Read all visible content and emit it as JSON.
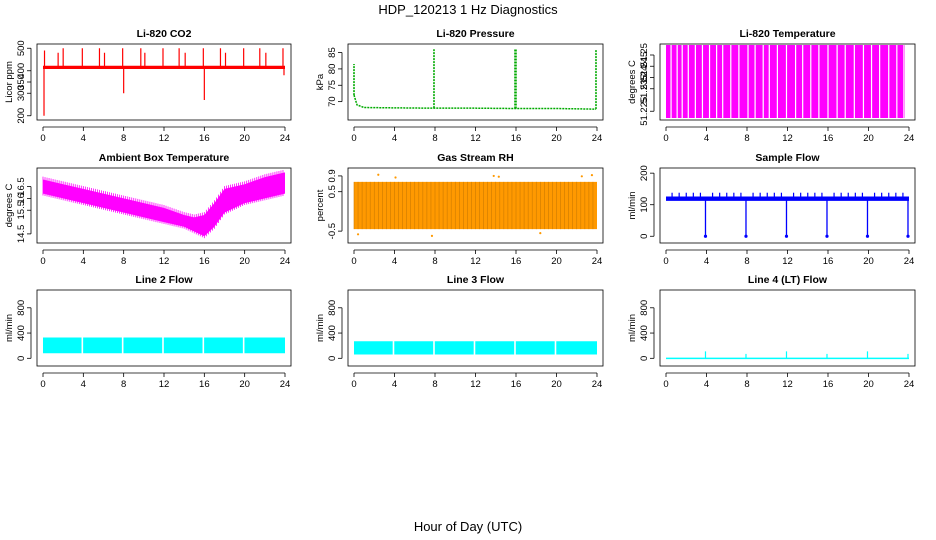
{
  "figure": {
    "title": "HDP_120213  1 Hz Diagnostics",
    "xlabel": "Hour of Day (UTC)"
  },
  "chart_data": [
    {
      "type": "line",
      "title": "Li-820 CO2",
      "ylabel": "Licor ppm",
      "color": "#ff0000",
      "xlim": [
        0,
        24
      ],
      "ylim": [
        190,
        510
      ],
      "xticks": [
        0,
        4,
        8,
        12,
        16,
        20,
        24
      ],
      "yticks": [
        200,
        300,
        350,
        400,
        500
      ],
      "baseline": {
        "x": [
          0,
          24
        ],
        "y": [
          415,
          415
        ]
      },
      "band": {
        "x": [
          0,
          24
        ],
        "low": [
          408,
          408
        ],
        "high": [
          422,
          422
        ]
      },
      "spikes": [
        {
          "x": 0.1,
          "y": 200
        },
        {
          "x": 0.15,
          "y": 490
        },
        {
          "x": 1.5,
          "y": 480
        },
        {
          "x": 2.0,
          "y": 500
        },
        {
          "x": 3.9,
          "y": 500
        },
        {
          "x": 5.6,
          "y": 500
        },
        {
          "x": 6.1,
          "y": 480
        },
        {
          "x": 7.9,
          "y": 500
        },
        {
          "x": 8.0,
          "y": 300
        },
        {
          "x": 9.7,
          "y": 500
        },
        {
          "x": 10.1,
          "y": 480
        },
        {
          "x": 11.9,
          "y": 500
        },
        {
          "x": 13.5,
          "y": 500
        },
        {
          "x": 14.1,
          "y": 480
        },
        {
          "x": 15.9,
          "y": 500
        },
        {
          "x": 16.0,
          "y": 270
        },
        {
          "x": 17.6,
          "y": 500
        },
        {
          "x": 18.1,
          "y": 480
        },
        {
          "x": 19.9,
          "y": 500
        },
        {
          "x": 21.5,
          "y": 500
        },
        {
          "x": 22.1,
          "y": 480
        },
        {
          "x": 23.8,
          "y": 500
        },
        {
          "x": 23.9,
          "y": 380
        }
      ]
    },
    {
      "type": "line",
      "title": "Li-820 Pressure",
      "ylabel": "kPa",
      "color": "#00aa00",
      "xlim": [
        0,
        24
      ],
      "ylim": [
        65,
        87
      ],
      "xticks": [
        0,
        4,
        8,
        12,
        16,
        20,
        24
      ],
      "yticks": [
        70,
        75,
        80,
        85
      ],
      "baseline": {
        "x": [
          0,
          0.3,
          1,
          4,
          8,
          12,
          16,
          20,
          23.9
        ],
        "y": [
          72,
          69,
          68.2,
          68.1,
          68.0,
          68.0,
          67.9,
          67.9,
          67.7
        ]
      },
      "spikes": [
        {
          "x": 0.0,
          "y": 81.5
        },
        {
          "x": 7.9,
          "y": 86
        },
        {
          "x": 15.9,
          "y": 86
        },
        {
          "x": 16.0,
          "y": 86
        },
        {
          "x": 23.9,
          "y": 86
        }
      ]
    },
    {
      "type": "bar",
      "title": "Li-820 Temperature",
      "ylabel": "degrees C",
      "color": "#ff00ff",
      "xlim": [
        0,
        24
      ],
      "ylim": [
        51.222,
        51.254
      ],
      "xticks": [
        0,
        4,
        8,
        12,
        16,
        20,
        24
      ],
      "yticks": [
        51.225,
        51.235,
        51.24,
        51.245,
        51.25
      ],
      "fill_range": [
        0,
        23.6
      ],
      "gaps": [
        0.5,
        1.1,
        1.6,
        2.2,
        2.9,
        3.6,
        4.3,
        5.0,
        5.6,
        6.4,
        7.2,
        8.1,
        8.8,
        9.6,
        10.2,
        11.0,
        11.9,
        12.8,
        13.5,
        14.3,
        15.1,
        16.0,
        16.9,
        17.7,
        18.6,
        19.5,
        20.3,
        21.1,
        22.0,
        22.8,
        23.5
      ]
    },
    {
      "type": "area",
      "title": "Ambient Box Temperature",
      "ylabel": "degrees C",
      "color": "#ff00ff",
      "xlim": [
        0,
        24
      ],
      "ylim": [
        14.2,
        17.2
      ],
      "xticks": [
        0,
        4,
        8,
        12,
        16,
        20,
        24
      ],
      "yticks": [
        14.5,
        15.5,
        16.0,
        16.5
      ],
      "x": [
        0,
        2,
        4,
        6,
        8,
        10,
        12,
        14,
        15,
        16,
        17,
        18,
        20,
        22,
        24
      ],
      "low": [
        16.2,
        16.0,
        15.8,
        15.6,
        15.4,
        15.2,
        15.0,
        14.8,
        14.6,
        14.4,
        14.8,
        15.4,
        15.8,
        16.0,
        16.2
      ],
      "high": [
        16.8,
        16.6,
        16.4,
        16.2,
        16.0,
        15.8,
        15.6,
        15.3,
        15.2,
        15.3,
        15.8,
        16.4,
        16.6,
        16.9,
        17.1
      ]
    },
    {
      "type": "area",
      "title": "Gas Stream RH",
      "ylabel": "percent",
      "color": "#ff9900",
      "xlim": [
        0,
        24
      ],
      "ylim": [
        -0.75,
        1.05
      ],
      "xticks": [
        0,
        4,
        8,
        12,
        16,
        20,
        24
      ],
      "yticks": [
        -0.5,
        0.5,
        0.9
      ],
      "x": [
        0,
        4,
        8,
        12,
        16,
        20,
        24
      ],
      "low": [
        -0.45,
        -0.45,
        -0.45,
        -0.45,
        -0.45,
        -0.45,
        -0.45
      ],
      "high": [
        0.75,
        0.75,
        0.75,
        0.75,
        0.75,
        0.75,
        0.75
      ],
      "dots": [
        {
          "x": 2.4,
          "y": 0.93
        },
        {
          "x": 4.1,
          "y": 0.86
        },
        {
          "x": 7.7,
          "y": -0.62
        },
        {
          "x": 13.8,
          "y": 0.9
        },
        {
          "x": 14.3,
          "y": 0.88
        },
        {
          "x": 22.5,
          "y": 0.89
        },
        {
          "x": 23.5,
          "y": 0.92
        },
        {
          "x": 0.4,
          "y": -0.58
        },
        {
          "x": 18.4,
          "y": -0.55
        }
      ]
    },
    {
      "type": "line",
      "title": "Sample Flow",
      "ylabel": "ml/min",
      "color": "#0000ff",
      "xlim": [
        0,
        24
      ],
      "ylim": [
        -15,
        210
      ],
      "xticks": [
        0,
        4,
        8,
        12,
        16,
        20,
        24
      ],
      "yticks": [
        0,
        100,
        200
      ],
      "baseline": {
        "x": [
          0,
          24
        ],
        "y": [
          118,
          118
        ]
      },
      "band": {
        "x": [
          0,
          24
        ],
        "low": [
          112,
          112
        ],
        "high": [
          126,
          126
        ]
      },
      "dips": [
        3.9,
        7.9,
        11.9,
        15.9,
        19.9,
        23.9
      ],
      "dip_value": 0,
      "bumps": [
        0.6,
        1.3,
        2.0,
        2.7,
        3.4,
        4.6,
        5.3,
        6.0,
        6.7,
        7.4,
        8.6,
        9.3,
        10.0,
        10.7,
        11.4,
        12.6,
        13.3,
        14.0,
        14.7,
        15.4,
        16.6,
        17.3,
        18.0,
        18.7,
        19.4,
        20.6,
        21.3,
        22.0,
        22.7,
        23.4
      ],
      "bump_value": 138
    },
    {
      "type": "area",
      "title": "Line 2 Flow",
      "ylabel": "ml/min",
      "color": "#00ffff",
      "xlim": [
        0,
        24
      ],
      "ylim": [
        -90,
        1050
      ],
      "xticks": [
        0,
        4,
        8,
        12,
        16,
        20,
        24
      ],
      "yticks": [
        0,
        400,
        800
      ],
      "x": [
        0,
        24
      ],
      "low": [
        80,
        80
      ],
      "high": [
        330,
        330
      ],
      "gaps": [
        3.9,
        7.9,
        11.9,
        15.9,
        19.9
      ]
    },
    {
      "type": "area",
      "title": "Line 3 Flow",
      "ylabel": "ml/min",
      "color": "#00ffff",
      "xlim": [
        0,
        24
      ],
      "ylim": [
        -90,
        1050
      ],
      "xticks": [
        0,
        4,
        8,
        12,
        16,
        20,
        24
      ],
      "yticks": [
        0,
        400,
        800
      ],
      "x": [
        0,
        24
      ],
      "low": [
        60,
        60
      ],
      "high": [
        270,
        270
      ],
      "gaps": [
        3.9,
        7.9,
        11.9,
        15.9,
        19.9
      ]
    },
    {
      "type": "line",
      "title": "Line 4 (LT) Flow",
      "ylabel": "ml/min",
      "color": "#00ffff",
      "xlim": [
        0,
        24
      ],
      "ylim": [
        -90,
        1050
      ],
      "xticks": [
        0,
        4,
        8,
        12,
        16,
        20,
        24
      ],
      "yticks": [
        0,
        400,
        800
      ],
      "baseline": {
        "x": [
          0,
          24
        ],
        "y": [
          0,
          0
        ]
      },
      "spikes": [
        {
          "x": 3.9,
          "y": 110
        },
        {
          "x": 7.9,
          "y": 70
        },
        {
          "x": 11.9,
          "y": 110
        },
        {
          "x": 15.9,
          "y": 70
        },
        {
          "x": 19.9,
          "y": 110
        },
        {
          "x": 23.9,
          "y": 70
        }
      ]
    }
  ]
}
